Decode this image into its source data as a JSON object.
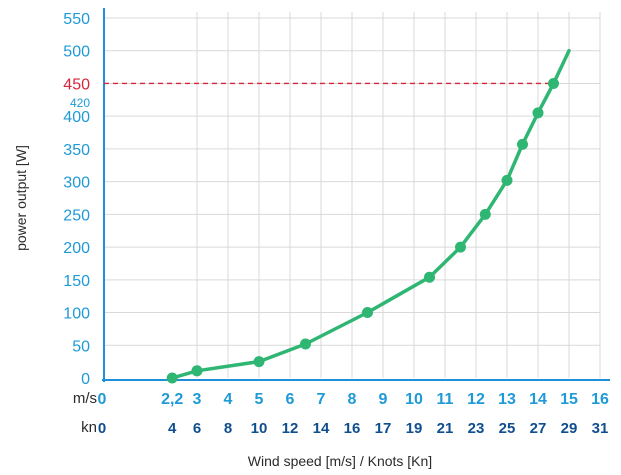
{
  "chart_data": {
    "type": "line",
    "xlabel": "Wind speed [m/s] / Knots [Kn]",
    "ylabel": "power output [W]",
    "ylim": [
      0,
      550
    ],
    "xlim": [
      0,
      16
    ],
    "grid": true,
    "y_ticks": [
      {
        "value": 0,
        "label": "0"
      },
      {
        "value": 50,
        "label": "50"
      },
      {
        "value": 100,
        "label": "100"
      },
      {
        "value": 150,
        "label": "150"
      },
      {
        "value": 200,
        "label": "200"
      },
      {
        "value": 250,
        "label": "250"
      },
      {
        "value": 300,
        "label": "300"
      },
      {
        "value": 350,
        "label": "350"
      },
      {
        "value": 400,
        "label": "400"
      },
      {
        "value": 450,
        "label": "450",
        "color": "#d6263c"
      },
      {
        "value": 500,
        "label": "500"
      },
      {
        "value": 550,
        "label": "550"
      }
    ],
    "x_ticks_ms": [
      {
        "value": 0,
        "label": "0"
      },
      {
        "value": 2.2,
        "label": "2,2"
      },
      {
        "value": 3,
        "label": "3"
      },
      {
        "value": 4,
        "label": "4"
      },
      {
        "value": 5,
        "label": "5"
      },
      {
        "value": 6,
        "label": "6"
      },
      {
        "value": 7,
        "label": "7"
      },
      {
        "value": 8,
        "label": "8"
      },
      {
        "value": 9,
        "label": "9"
      },
      {
        "value": 10,
        "label": "10"
      },
      {
        "value": 11,
        "label": "11"
      },
      {
        "value": 12,
        "label": "12"
      },
      {
        "value": 13,
        "label": "13"
      },
      {
        "value": 14,
        "label": "14"
      },
      {
        "value": 15,
        "label": "15"
      },
      {
        "value": 16,
        "label": "16"
      }
    ],
    "x_ticks_kn": [
      {
        "value": 0,
        "label": "0"
      },
      {
        "value": 2.2,
        "label": "4"
      },
      {
        "value": 3,
        "label": "6"
      },
      {
        "value": 4,
        "label": "8"
      },
      {
        "value": 5,
        "label": "10"
      },
      {
        "value": 6,
        "label": "12"
      },
      {
        "value": 7,
        "label": "14"
      },
      {
        "value": 8,
        "label": "16"
      },
      {
        "value": 9,
        "label": "17"
      },
      {
        "value": 10,
        "label": "19"
      },
      {
        "value": 11,
        "label": "21"
      },
      {
        "value": 12,
        "label": "23"
      },
      {
        "value": 13,
        "label": "25"
      },
      {
        "value": 14,
        "label": "27"
      },
      {
        "value": 15,
        "label": "29"
      },
      {
        "value": 16,
        "label": "31"
      }
    ],
    "row_labels": {
      "ms": "m/s",
      "kn": "kn"
    },
    "series": [
      {
        "x": [
          2.2,
          3,
          5,
          6.5,
          8.5,
          10.5,
          11.5,
          12.3,
          13,
          13.5,
          14,
          14.5,
          15
        ],
        "y": [
          0,
          11,
          25,
          52,
          100,
          154,
          200,
          250,
          302,
          357,
          405,
          450,
          500
        ],
        "markers": [
          true,
          true,
          true,
          true,
          true,
          true,
          true,
          true,
          true,
          true,
          true,
          true,
          false
        ],
        "color": "#2fb673"
      }
    ],
    "reference_line": {
      "y": 450,
      "x_end": 14.5,
      "color": "#d6263c",
      "style": "dashed"
    },
    "annotations": [
      {
        "text": "420",
        "near_y": 420
      }
    ]
  }
}
